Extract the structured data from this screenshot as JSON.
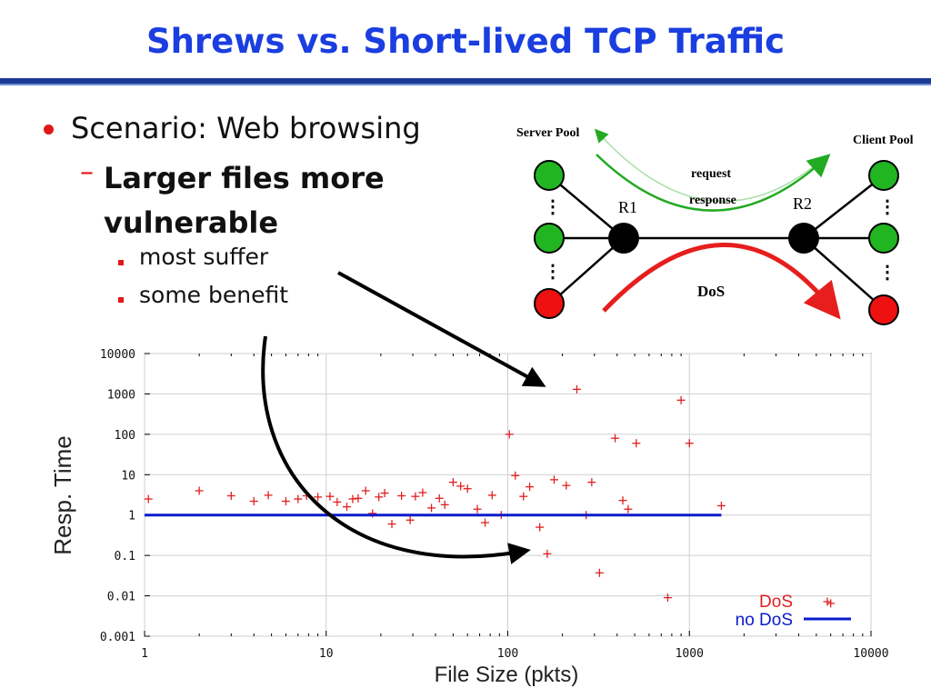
{
  "slide": {
    "title": "Shrews vs. Short-lived TCP Traffic",
    "bullets": {
      "level1": "Scenario: Web browsing",
      "level2_dash": "–",
      "level2": "Larger files more vulnerable",
      "level3": [
        "most suffer",
        "some benefit"
      ]
    }
  },
  "diagram": {
    "server_pool_label": "Server Pool",
    "client_pool_label": "Client Pool",
    "request_label": "request",
    "response_label": "response",
    "r1_label": "R1",
    "r2_label": "R2",
    "dos_label": "DoS",
    "ellipsis": "⋮",
    "colors": {
      "normal_node": "#22b522",
      "attacker_node": "#ee1111",
      "router": "#000000",
      "green_arrow": "#22aa22",
      "red_arrow": "#e61e1e"
    }
  },
  "chart_data": {
    "type": "scatter",
    "xlabel": "File Size (pkts)",
    "ylabel": "Resp. Time",
    "x_scale": "log",
    "y_scale": "log",
    "xlim": [
      1,
      10000
    ],
    "ylim": [
      0.001,
      10000
    ],
    "x_ticks": [
      "1",
      "10",
      "100",
      "1000",
      "10000"
    ],
    "y_ticks": [
      "10000",
      "1000",
      "100",
      "10",
      "1",
      "0.1",
      "0.01",
      "0.001"
    ],
    "legend_placement": "bottom-right",
    "series": [
      {
        "name": "DoS",
        "marker": "+",
        "color": "#e02020",
        "points": [
          [
            1.05,
            2.5
          ],
          [
            2,
            4
          ],
          [
            3,
            3
          ],
          [
            4,
            2.2
          ],
          [
            4.8,
            3.1
          ],
          [
            6,
            2.2
          ],
          [
            7,
            2.5
          ],
          [
            7.8,
            3
          ],
          [
            9,
            2.8
          ],
          [
            10.5,
            2.9
          ],
          [
            11.5,
            2.1
          ],
          [
            13,
            1.6
          ],
          [
            14,
            2.5
          ],
          [
            15,
            2.6
          ],
          [
            16.5,
            4
          ],
          [
            18,
            1.1
          ],
          [
            19.5,
            2.8
          ],
          [
            21,
            3.5
          ],
          [
            23,
            0.6
          ],
          [
            26,
            3.0
          ],
          [
            29,
            0.75
          ],
          [
            31,
            2.9
          ],
          [
            34,
            3.6
          ],
          [
            38,
            1.5
          ],
          [
            42,
            2.6
          ],
          [
            45,
            1.8
          ],
          [
            50,
            6.5
          ],
          [
            55,
            5.2
          ],
          [
            60,
            4.5
          ],
          [
            68,
            1.4
          ],
          [
            75,
            0.65
          ],
          [
            82,
            3.1
          ],
          [
            92,
            1.0
          ],
          [
            102,
            100
          ],
          [
            110,
            9.5
          ],
          [
            122,
            2.9
          ],
          [
            132,
            5.0
          ],
          [
            150,
            0.5
          ],
          [
            165,
            0.11
          ],
          [
            180,
            7.5
          ],
          [
            210,
            5.4
          ],
          [
            240,
            1300
          ],
          [
            270,
            1.0
          ],
          [
            290,
            6.5
          ],
          [
            320,
            0.037
          ],
          [
            390,
            80
          ],
          [
            430,
            2.3
          ],
          [
            460,
            1.4
          ],
          [
            510,
            60
          ],
          [
            760,
            0.009
          ],
          [
            900,
            700
          ],
          [
            1000,
            60
          ],
          [
            1500,
            1.7
          ],
          [
            6000,
            0.0065
          ]
        ]
      },
      {
        "name": "no DoS",
        "type": "line",
        "color": "#0a1ccc",
        "points": [
          [
            1,
            1
          ],
          [
            1500,
            1
          ]
        ]
      }
    ]
  }
}
